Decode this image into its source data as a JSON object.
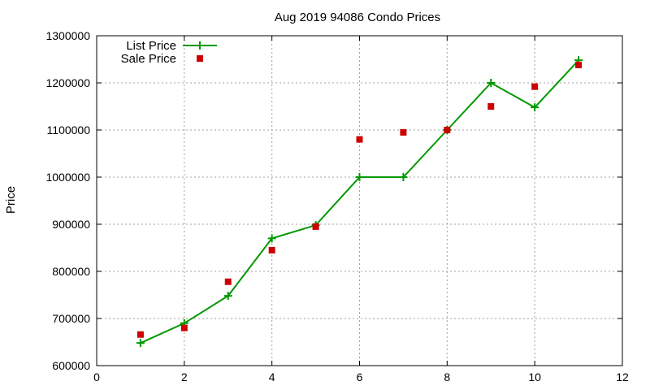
{
  "chart_data": {
    "type": "line",
    "title": "Aug 2019 94086 Condo Prices",
    "xlabel": "",
    "ylabel": "Price",
    "xlim": [
      0,
      12
    ],
    "ylim": [
      600000,
      1300000
    ],
    "x_ticks": [
      0,
      2,
      4,
      6,
      8,
      10,
      12
    ],
    "y_ticks": [
      600000,
      700000,
      800000,
      900000,
      1000000,
      1100000,
      1200000,
      1300000
    ],
    "grid": true,
    "legend_position": "top-left",
    "series": [
      {
        "name": "List Price",
        "style": "line-points",
        "marker": "plus",
        "color": "#009900",
        "points": [
          [
            1,
            648000
          ],
          [
            2,
            690000
          ],
          [
            3,
            748000
          ],
          [
            4,
            870000
          ],
          [
            5,
            898000
          ],
          [
            6,
            1000000
          ],
          [
            7,
            1000000
          ],
          [
            8,
            1100000
          ],
          [
            9,
            1200000
          ],
          [
            10,
            1148000
          ],
          [
            11,
            1248000
          ]
        ]
      },
      {
        "name": "Sale Price",
        "style": "points",
        "marker": "square",
        "color": "#cc0000",
        "points": [
          [
            1,
            666000
          ],
          [
            2,
            680000
          ],
          [
            3,
            778000
          ],
          [
            4,
            845000
          ],
          [
            5,
            895000
          ],
          [
            6,
            1080000
          ],
          [
            7,
            1095000
          ],
          [
            8,
            1100000
          ],
          [
            9,
            1150000
          ],
          [
            10,
            1192000
          ],
          [
            11,
            1238000
          ]
        ]
      }
    ]
  }
}
